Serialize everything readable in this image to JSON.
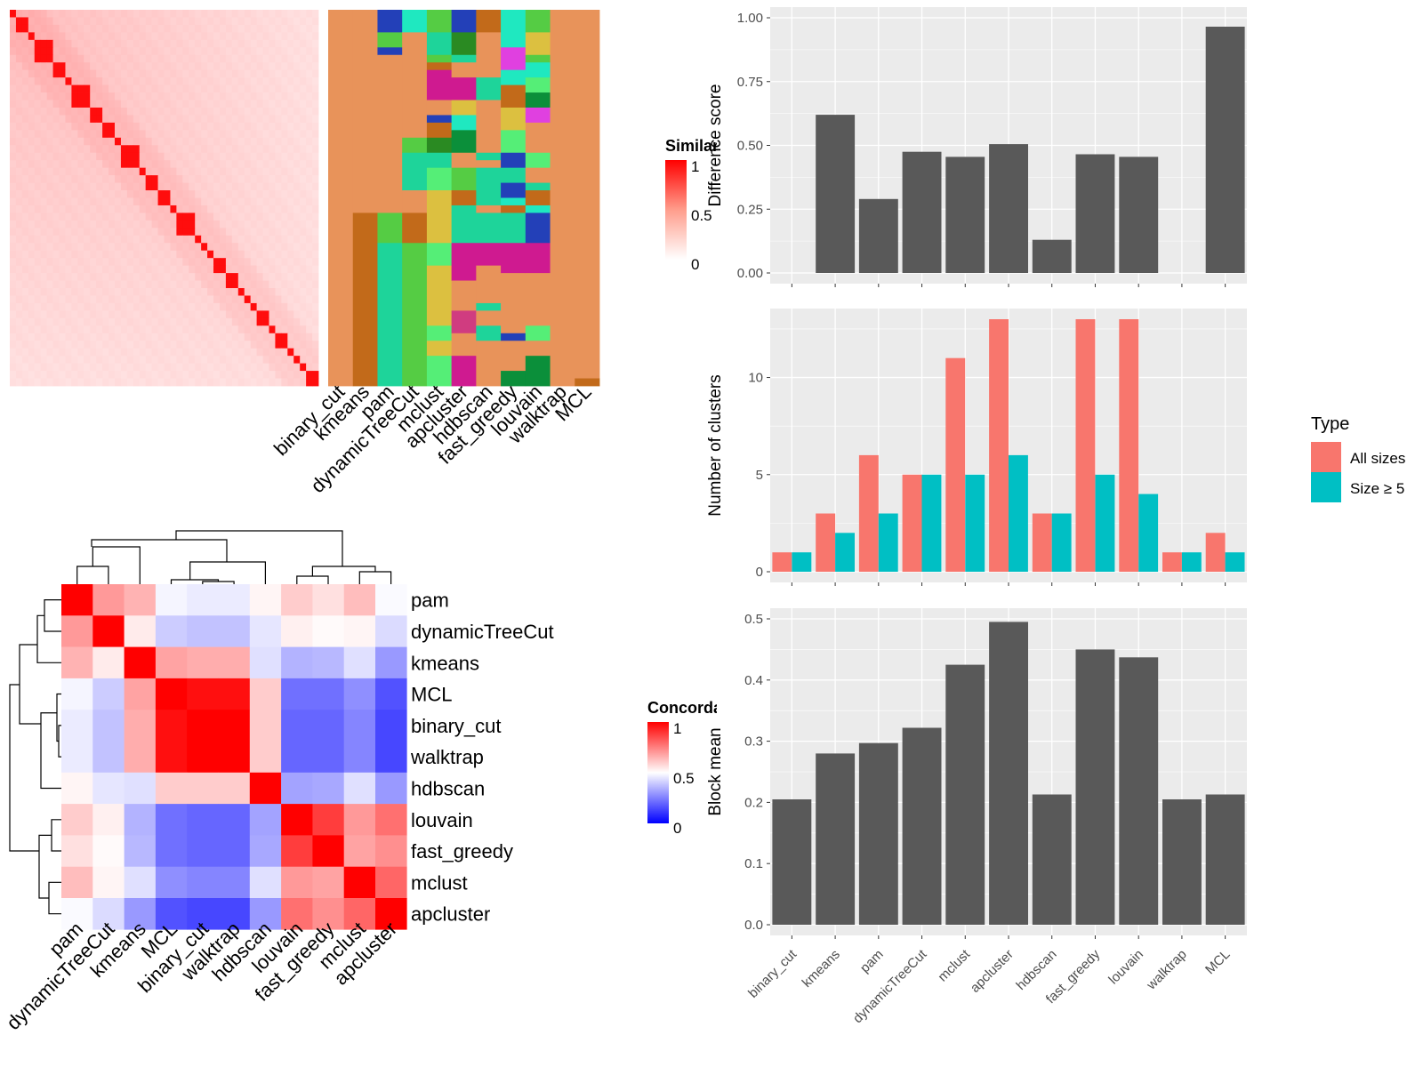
{
  "colors": {
    "panel_bg": "#ebebeb",
    "grid": "#ffffff",
    "bar": "#595959",
    "all_sizes": "#f8766d",
    "size5": "#00bfc4",
    "heat_high": "#ff0000",
    "heat_mid": "#ffffff",
    "heat_low": "#0000ff"
  },
  "methods": [
    "binary_cut",
    "kmeans",
    "pam",
    "dynamicTreeCut",
    "mclust",
    "apcluster",
    "hdbscan",
    "fast_greedy",
    "louvain",
    "walktrap",
    "MCL"
  ],
  "chart_data": [
    {
      "type": "heatmap",
      "id": "similarity-heatmap",
      "legend_title": "Similarity",
      "legend_ticks": [
        "1",
        "0.5",
        "0"
      ],
      "note": "sorted term-similarity matrix with red diagonal blocks"
    },
    {
      "type": "heatmap",
      "id": "cluster-assignments",
      "columns": [
        "binary_cut",
        "kmeans",
        "pam",
        "dynamicTreeCut",
        "mclust",
        "apcluster",
        "hdbscan",
        "fast_greedy",
        "louvain",
        "walktrap",
        "MCL"
      ],
      "palette": [
        "#e8935a",
        "#c26a1a",
        "#2340b8",
        "#1fe8c0",
        "#1ed49a",
        "#55cc44",
        "#2a8a22",
        "#e040e0",
        "#d03c80",
        "#cf1a90",
        "#dcc040",
        "#55ee77",
        "#0b8f3a"
      ]
    },
    {
      "type": "heatmap",
      "id": "concordance-heatmap",
      "legend_title": "Concordance",
      "legend_ticks": [
        "1",
        "0.5",
        "0"
      ],
      "rows": [
        "pam",
        "dynamicTreeCut",
        "kmeans",
        "MCL",
        "binary_cut",
        "walktrap",
        "hdbscan",
        "louvain",
        "fast_greedy",
        "mclust",
        "apcluster"
      ],
      "cols": [
        "pam",
        "dynamicTreeCut",
        "kmeans",
        "MCL",
        "binary_cut",
        "walktrap",
        "hdbscan",
        "louvain",
        "fast_greedy",
        "mclust",
        "apcluster"
      ],
      "values": [
        [
          1.0,
          0.7,
          0.65,
          0.48,
          0.46,
          0.46,
          0.52,
          0.6,
          0.56,
          0.63,
          0.49
        ],
        [
          0.7,
          1.0,
          0.54,
          0.4,
          0.38,
          0.38,
          0.45,
          0.53,
          0.51,
          0.52,
          0.43
        ],
        [
          0.65,
          0.54,
          1.0,
          0.68,
          0.66,
          0.66,
          0.44,
          0.35,
          0.36,
          0.44,
          0.3
        ],
        [
          0.48,
          0.4,
          0.68,
          1.0,
          0.97,
          0.97,
          0.6,
          0.22,
          0.22,
          0.28,
          0.16
        ],
        [
          0.46,
          0.38,
          0.66,
          0.97,
          1.0,
          1.0,
          0.6,
          0.2,
          0.2,
          0.26,
          0.14
        ],
        [
          0.46,
          0.38,
          0.66,
          0.97,
          1.0,
          1.0,
          0.6,
          0.2,
          0.2,
          0.26,
          0.14
        ],
        [
          0.52,
          0.45,
          0.44,
          0.6,
          0.6,
          0.6,
          1.0,
          0.32,
          0.33,
          0.44,
          0.3
        ],
        [
          0.6,
          0.53,
          0.35,
          0.22,
          0.2,
          0.2,
          0.32,
          1.0,
          0.88,
          0.7,
          0.78
        ],
        [
          0.56,
          0.51,
          0.36,
          0.22,
          0.2,
          0.2,
          0.33,
          0.88,
          1.0,
          0.68,
          0.72
        ],
        [
          0.63,
          0.52,
          0.44,
          0.28,
          0.26,
          0.26,
          0.44,
          0.7,
          0.68,
          1.0,
          0.8
        ],
        [
          0.49,
          0.43,
          0.3,
          0.16,
          0.14,
          0.14,
          0.3,
          0.78,
          0.72,
          0.8,
          1.0
        ]
      ]
    },
    {
      "type": "bar",
      "id": "difference-score",
      "ylabel": "Difference score",
      "categories": [
        "binary_cut",
        "kmeans",
        "pam",
        "dynamicTreeCut",
        "mclust",
        "apcluster",
        "hdbscan",
        "fast_greedy",
        "louvain",
        "walktrap",
        "MCL"
      ],
      "values": [
        0,
        0.62,
        0.29,
        0.475,
        0.455,
        0.505,
        0.13,
        0.465,
        0.455,
        0,
        0.965
      ],
      "ylim": [
        0,
        1
      ],
      "yticks": [
        "0.00",
        "0.25",
        "0.50",
        "0.75",
        "1.00"
      ]
    },
    {
      "type": "bar",
      "id": "number-of-clusters",
      "ylabel": "Number of clusters",
      "categories": [
        "binary_cut",
        "kmeans",
        "pam",
        "dynamicTreeCut",
        "mclust",
        "apcluster",
        "hdbscan",
        "fast_greedy",
        "louvain",
        "walktrap",
        "MCL"
      ],
      "ylim": [
        0,
        13
      ],
      "yticks": [
        "0",
        "5",
        "10"
      ],
      "legend_title": "Type",
      "series": [
        {
          "name": "All sizes",
          "values": [
            1,
            3,
            6,
            5,
            11,
            13,
            3,
            13,
            13,
            1,
            2
          ]
        },
        {
          "name": "Size ≥ 5",
          "values": [
            1,
            2,
            3,
            5,
            5,
            6,
            3,
            5,
            4,
            1,
            1
          ]
        }
      ]
    },
    {
      "type": "bar",
      "id": "block-mean",
      "ylabel": "Block mean",
      "categories": [
        "binary_cut",
        "kmeans",
        "pam",
        "dynamicTreeCut",
        "mclust",
        "apcluster",
        "hdbscan",
        "fast_greedy",
        "louvain",
        "walktrap",
        "MCL"
      ],
      "values": [
        0.205,
        0.28,
        0.297,
        0.322,
        0.425,
        0.495,
        0.213,
        0.45,
        0.437,
        0.205,
        0.213
      ],
      "ylim": [
        0,
        0.5
      ],
      "yticks": [
        "0.0",
        "0.1",
        "0.2",
        "0.3",
        "0.4",
        "0.5"
      ]
    }
  ]
}
